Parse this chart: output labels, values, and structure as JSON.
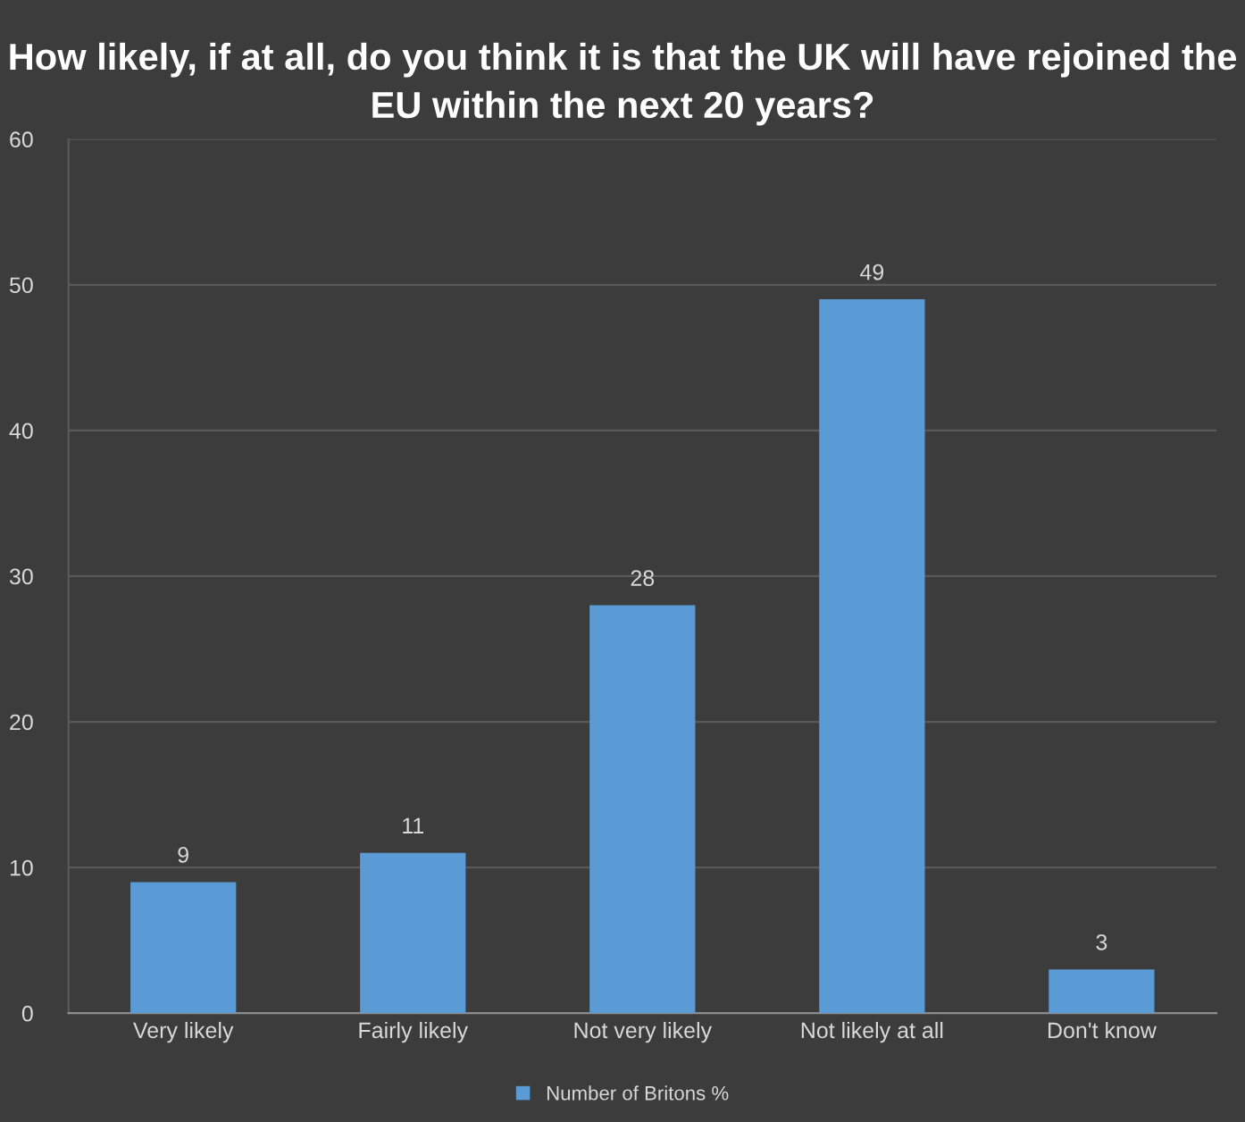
{
  "chart_data": {
    "type": "bar",
    "title": "How likely, if at all, do you think it is that the UK will have rejoined the EU within the next 20 years?",
    "categories": [
      "Very likely",
      "Fairly likely",
      "Not very likely",
      "Not likely at all",
      "Don't know"
    ],
    "series": [
      {
        "name": "Number of Britons %",
        "color": "#5b9bd5",
        "values": [
          9,
          11,
          28,
          49,
          3
        ]
      }
    ],
    "ylim": [
      0,
      60
    ],
    "yticks": [
      0,
      10,
      20,
      30,
      40,
      50,
      60
    ],
    "grid": "y",
    "legend": "bottom",
    "data_labels": true
  }
}
